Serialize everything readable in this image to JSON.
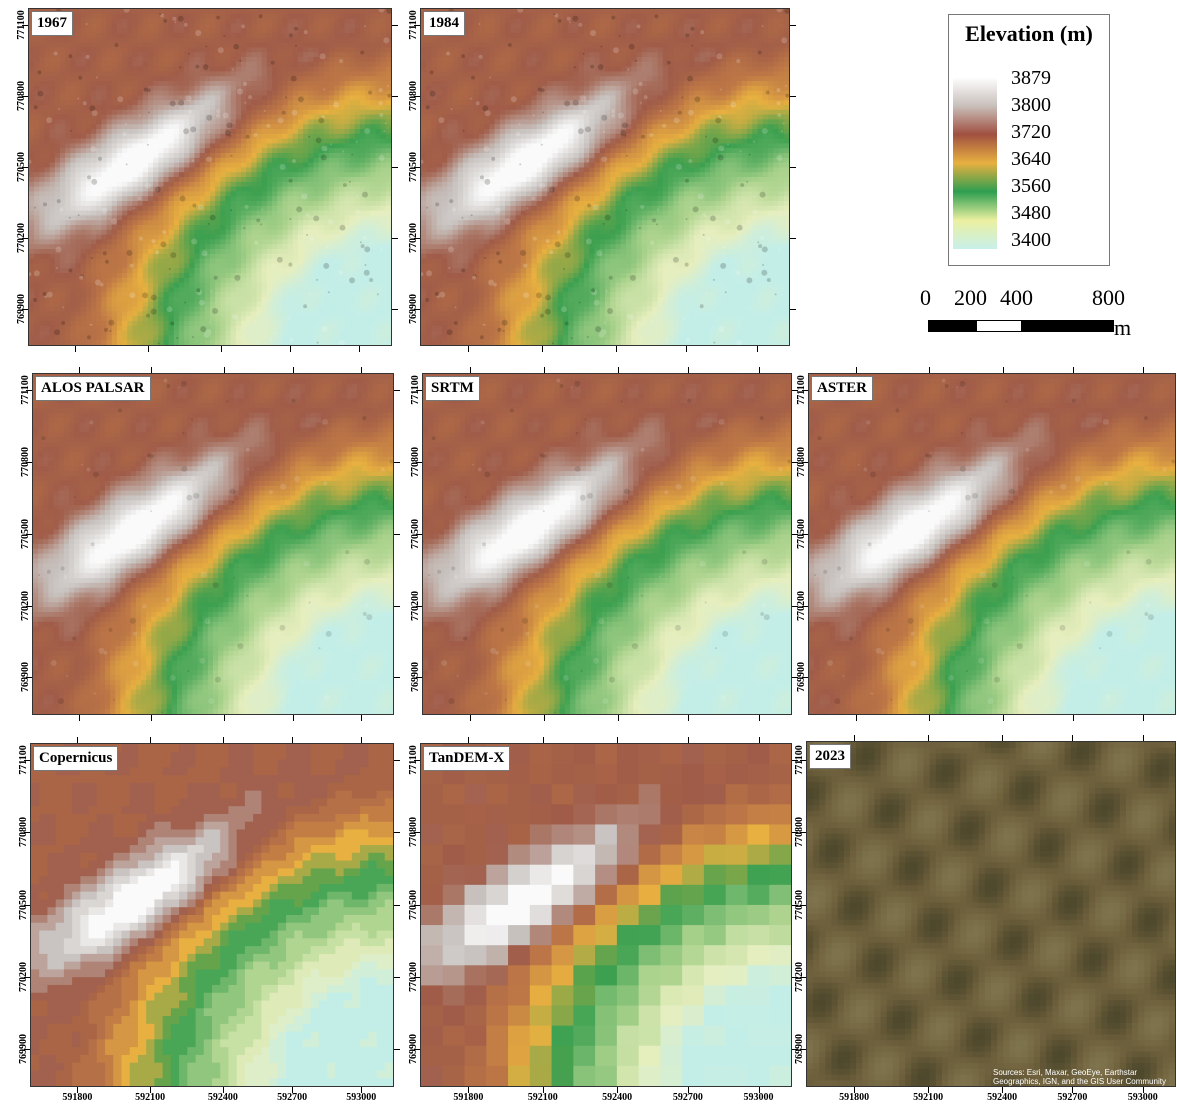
{
  "panels": [
    {
      "id": "p1967",
      "label": "1967",
      "style": "hillshade"
    },
    {
      "id": "p1984",
      "label": "1984",
      "style": "hillshade"
    },
    {
      "id": "palos",
      "label": "ALOS PALSAR",
      "style": "smooth"
    },
    {
      "id": "psrtm",
      "label": "SRTM",
      "style": "smooth"
    },
    {
      "id": "paster",
      "label": "ASTER",
      "style": "smooth"
    },
    {
      "id": "pcop",
      "label": "Copernicus",
      "style": "steps"
    },
    {
      "id": "ptan",
      "label": "TanDEM-X",
      "style": "pixel"
    },
    {
      "id": "p2023",
      "label": "2023",
      "style": "satellite",
      "attribution": "Sources: Esri, Maxar, GeoEye, Earthstar Geographics, IGN, and the GIS User Community"
    }
  ],
  "y_ticks": [
    "771100",
    "770800",
    "770500",
    "770200",
    "769900"
  ],
  "x_ticks": [
    "591800",
    "592100",
    "592400",
    "592700",
    "593000"
  ],
  "legend": {
    "title": "Elevation (m)",
    "labels": [
      "3879",
      "3800",
      "3720",
      "3640",
      "3560",
      "3480",
      "3400"
    ],
    "colors": [
      "#ffffff",
      "#c9c0bb",
      "#a05040",
      "#e8b040",
      "#2e9e50",
      "#eaf0a0",
      "#c8f0ea"
    ]
  },
  "scalebar": {
    "labels": [
      "0",
      "200",
      "400",
      "800"
    ],
    "unit": "m"
  }
}
